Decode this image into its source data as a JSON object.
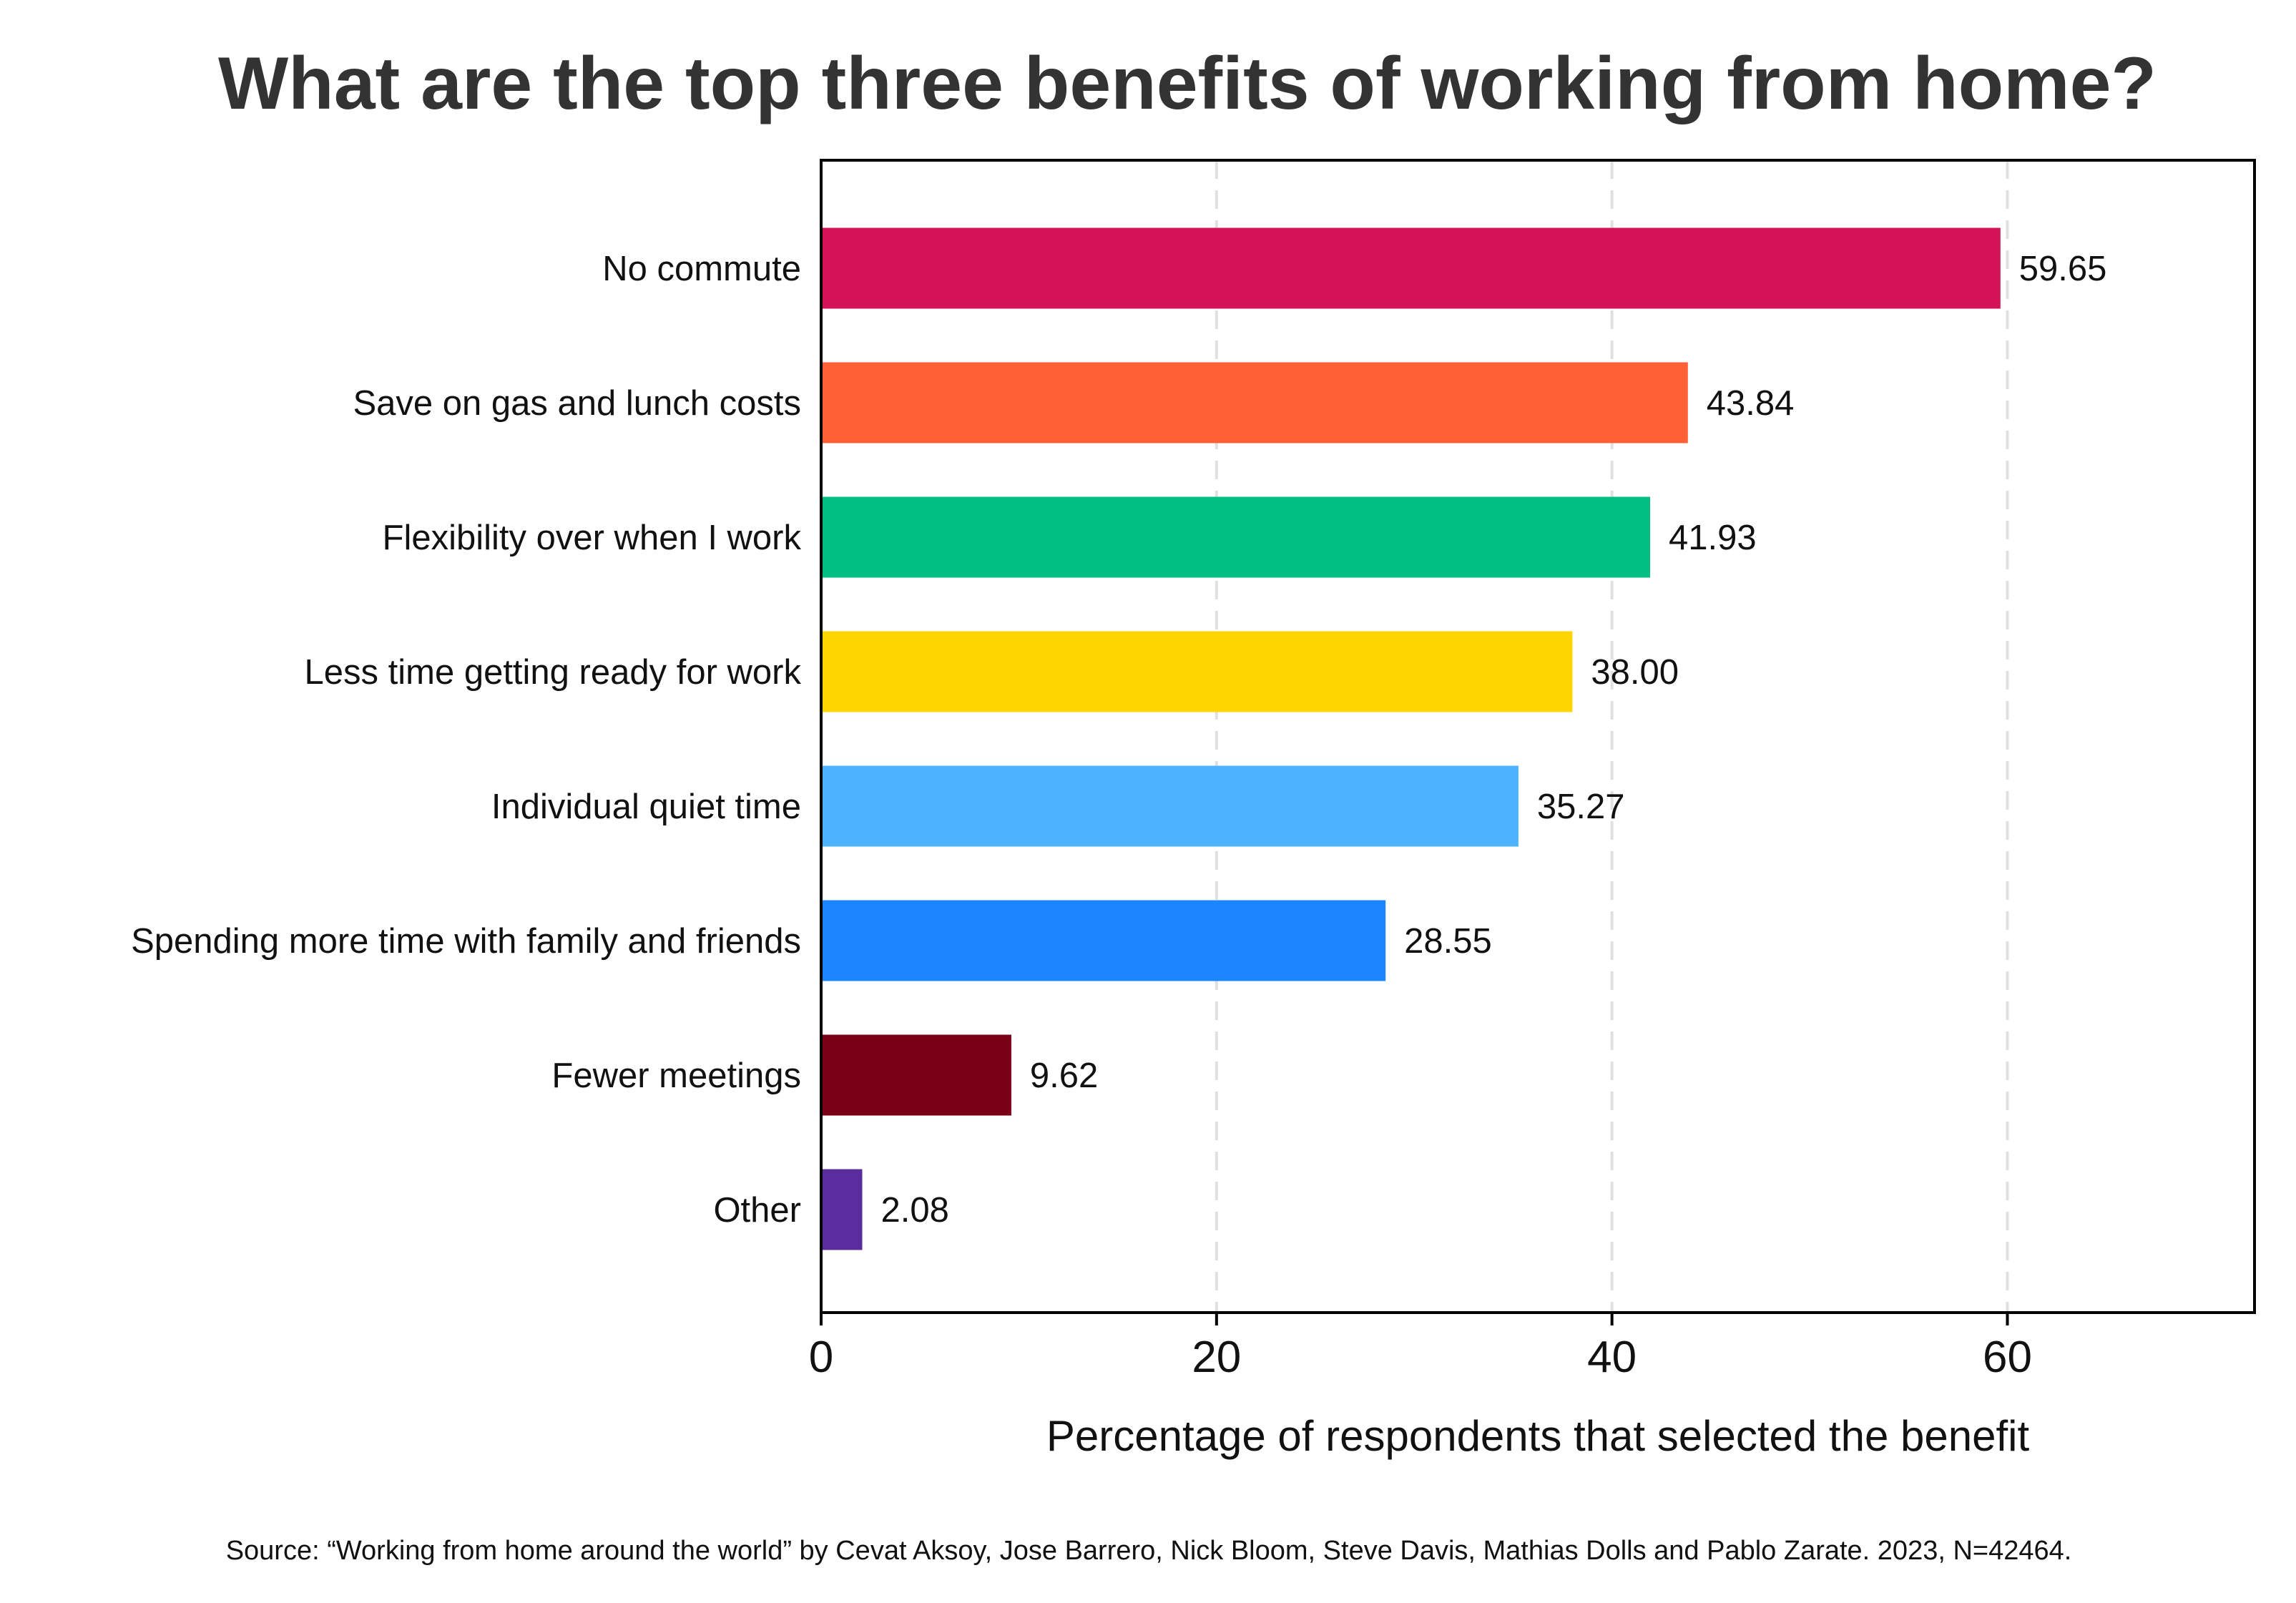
{
  "chart_data": {
    "type": "bar",
    "orientation": "horizontal",
    "title": "What are the top three benefits of working from home?",
    "xlabel": "Percentage of respondents that selected the benefit",
    "ylabel": "",
    "xlim": [
      0,
      72.5
    ],
    "xticks": [
      0,
      20,
      40,
      60
    ],
    "xtick_labels": [
      "0",
      "20",
      "40",
      "60"
    ],
    "grid": "vertical dashed gridlines at 20, 40, 60",
    "categories": [
      "No commute",
      "Save on gas and lunch costs",
      "Flexibility over when I work",
      "Less time getting ready for work",
      "Individual quiet time",
      "Spending more time with family and friends",
      "Fewer meetings",
      "Other"
    ],
    "values": [
      59.65,
      43.84,
      41.93,
      38.0,
      35.27,
      28.55,
      9.62,
      2.08
    ],
    "value_labels": [
      "59.65",
      "43.84",
      "41.93",
      "38.00",
      "35.27",
      "28.55",
      "9.62",
      "2.08"
    ],
    "colors": [
      "#D41357",
      "#FF6136",
      "#00BF80",
      "#FFD500",
      "#4DB3FF",
      "#1A85FF",
      "#7A0017",
      "#5A2D9E"
    ],
    "source": "Source: “Working from home around the world” by Cevat Aksoy, Jose Barrero, Nick Bloom, Steve Davis, Mathias Dolls and Pablo Zarate. 2023, N=42464."
  }
}
